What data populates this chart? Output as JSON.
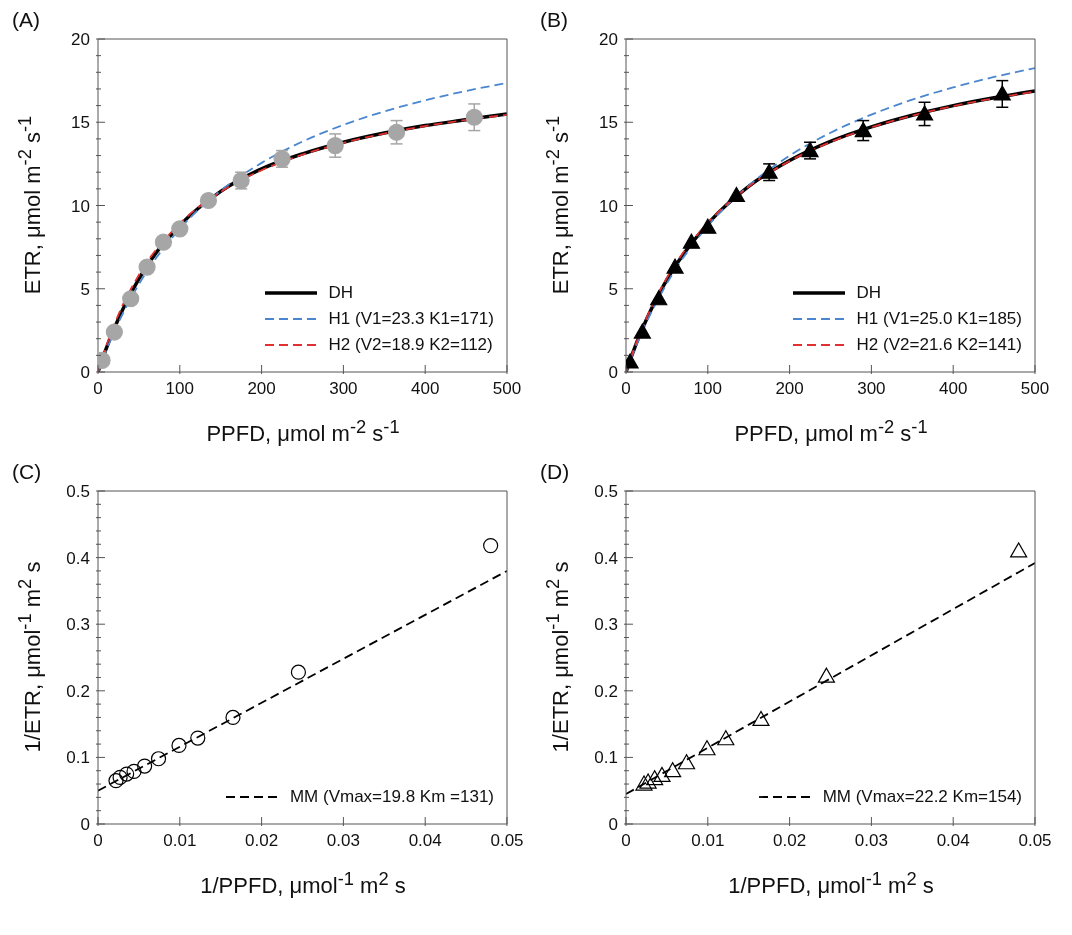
{
  "chart_data": [
    {
      "type": "line",
      "annotations": [
        "(A)"
      ],
      "xlabel": "PPFD, μmol m$^{-2}$ s$^{-1}$",
      "ylabel": "ETR, μmol m$^{-2}$ s$^{-1}$",
      "xlim": [
        0,
        500
      ],
      "xticks": [
        0,
        100,
        200,
        300,
        400,
        500
      ],
      "ylim": [
        0,
        20
      ],
      "yticks": [
        0,
        {
          "value": 1,
          "label": null
        },
        {
          "value": 2,
          "label": null
        },
        {
          "value": 3,
          "label": null
        },
        {
          "value": 4,
          "label": null
        },
        5,
        {
          "value": 6,
          "label": null
        },
        {
          "value": 7,
          "label": null
        },
        {
          "value": 8,
          "label": null
        },
        {
          "value": 9,
          "label": null
        },
        10,
        {
          "value": 11,
          "label": null
        },
        {
          "value": 12,
          "label": null
        },
        {
          "value": 13,
          "label": null
        },
        {
          "value": 14,
          "label": null
        },
        15,
        {
          "value": 16,
          "label": null
        },
        {
          "value": 17,
          "label": null
        },
        {
          "value": 18,
          "label": null
        },
        {
          "value": 19,
          "label": null
        },
        20
      ],
      "legend": "bottom right",
      "series": [
        {
          "name": "DH",
          "color": "#000000",
          "line_style": "solid",
          "marker": "none",
          "x": [
            0,
            10,
            25,
            50,
            100,
            150,
            200,
            250,
            300,
            350,
            400,
            450,
            500
          ],
          "values": [
            0,
            1.4,
            3.2,
            5.6,
            8.8,
            10.85,
            12.2,
            13.1,
            13.8,
            14.35,
            14.8,
            15.15,
            15.5
          ]
        },
        {
          "name": "H1 (V1=23.3 K1=171)",
          "color": "#4a86d0",
          "line_style": "dashed",
          "marker": "none",
          "x": [
            0,
            10,
            25,
            50,
            100,
            150,
            200,
            250,
            300,
            350,
            400,
            450,
            500
          ],
          "values": [
            0,
            1.29,
            2.97,
            5.27,
            8.6,
            10.89,
            12.56,
            13.84,
            14.84,
            15.65,
            16.32,
            16.88,
            17.36
          ]
        },
        {
          "name": "H2 (V2=18.9 K2=112)",
          "color": "#e03030",
          "line_style": "dashed",
          "marker": "none",
          "x": [
            0,
            10,
            25,
            50,
            100,
            150,
            200,
            250,
            300,
            350,
            400,
            450,
            500
          ],
          "values": [
            0,
            1.55,
            3.45,
            5.83,
            8.92,
            10.82,
            12.12,
            13.05,
            13.76,
            14.32,
            14.77,
            15.14,
            15.44
          ]
        },
        {
          "type": "scatter",
          "color": "#a6a6a6",
          "marker": "circle",
          "x": [
            5,
            20,
            40,
            60,
            80,
            100,
            135,
            175,
            225,
            290,
            365,
            460
          ],
          "values": [
            0.7,
            2.4,
            4.4,
            6.3,
            7.8,
            8.6,
            10.3,
            11.5,
            12.8,
            13.6,
            14.4,
            15.3
          ],
          "errors": [
            null,
            null,
            null,
            null,
            null,
            null,
            null,
            0.5,
            0.5,
            0.7,
            0.7,
            0.8
          ]
        }
      ]
    },
    {
      "type": "line",
      "annotations": [
        "(B)"
      ],
      "xlabel": "PPFD, μmol m$^{-2}$ s$^{-1}$",
      "ylabel": "ETR, μmol m$^{-2}$ s$^{-1}$",
      "xlim": [
        0,
        500
      ],
      "xticks": [
        0,
        100,
        200,
        300,
        400,
        500
      ],
      "ylim": [
        0,
        20
      ],
      "yticks": [
        0,
        {
          "value": 1,
          "label": null
        },
        {
          "value": 2,
          "label": null
        },
        {
          "value": 3,
          "label": null
        },
        {
          "value": 4,
          "label": null
        },
        5,
        {
          "value": 6,
          "label": null
        },
        {
          "value": 7,
          "label": null
        },
        {
          "value": 8,
          "label": null
        },
        {
          "value": 9,
          "label": null
        },
        10,
        {
          "value": 11,
          "label": null
        },
        {
          "value": 12,
          "label": null
        },
        {
          "value": 13,
          "label": null
        },
        {
          "value": 14,
          "label": null
        },
        15,
        {
          "value": 16,
          "label": null
        },
        {
          "value": 17,
          "label": null
        },
        {
          "value": 18,
          "label": null
        },
        {
          "value": 19,
          "label": null
        },
        20
      ],
      "legend": "bottom right",
      "series": [
        {
          "name": "DH",
          "color": "#000000",
          "line_style": "solid",
          "marker": "none",
          "x": [
            0,
            10,
            25,
            50,
            100,
            150,
            200,
            250,
            300,
            350,
            400,
            450,
            500
          ],
          "values": [
            0,
            1.38,
            3.15,
            5.55,
            8.9,
            11.15,
            12.7,
            13.85,
            14.72,
            15.42,
            16.0,
            16.47,
            16.88
          ]
        },
        {
          "name": "H1 (V1=25.0 K1=185)",
          "color": "#4a86d0",
          "line_style": "dashed",
          "marker": "none",
          "x": [
            0,
            10,
            25,
            50,
            100,
            150,
            200,
            250,
            300,
            350,
            400,
            450,
            500
          ],
          "values": [
            0,
            1.28,
            2.98,
            5.32,
            8.77,
            11.19,
            12.99,
            14.37,
            15.46,
            16.36,
            17.09,
            17.72,
            18.25
          ]
        },
        {
          "name": "H2 (V2=21.6 K2=141)",
          "color": "#e03030",
          "line_style": "dashed",
          "marker": "none",
          "x": [
            0,
            10,
            25,
            50,
            100,
            150,
            200,
            250,
            300,
            350,
            400,
            450,
            500
          ],
          "values": [
            0,
            1.43,
            3.25,
            5.65,
            8.96,
            11.13,
            12.67,
            13.81,
            14.69,
            15.4,
            15.97,
            16.44,
            16.84
          ]
        },
        {
          "type": "scatter",
          "color": "#000000",
          "marker": "triangle",
          "x": [
            5,
            20,
            40,
            60,
            80,
            100,
            135,
            175,
            225,
            290,
            365,
            460
          ],
          "values": [
            0.6,
            2.4,
            4.4,
            6.3,
            7.8,
            8.7,
            10.6,
            12.0,
            13.3,
            14.5,
            15.5,
            16.7
          ],
          "errors": [
            null,
            null,
            null,
            null,
            null,
            null,
            null,
            0.5,
            0.5,
            0.6,
            0.7,
            0.8
          ]
        }
      ]
    },
    {
      "type": "scatter",
      "annotations": [
        "(C)"
      ],
      "xlabel": "1/PPFD, μmol$^{-1}$ m$^{2}$ s",
      "ylabel": "1/ETR, μmol$^{-1}$ m$^{2}$ s",
      "xlim": [
        0,
        0.05
      ],
      "xticks": [
        0,
        0.01,
        0.02,
        0.03,
        0.04,
        0.05
      ],
      "ylim": [
        0,
        0.5
      ],
      "yticks": [
        0,
        {
          "value": 0.02,
          "label": null
        },
        {
          "value": 0.04,
          "label": null
        },
        {
          "value": 0.06,
          "label": null
        },
        {
          "value": 0.08,
          "label": null
        },
        0.1,
        {
          "value": 0.12,
          "label": null
        },
        {
          "value": 0.14,
          "label": null
        },
        {
          "value": 0.16,
          "label": null
        },
        {
          "value": 0.18,
          "label": null
        },
        0.2,
        {
          "value": 0.22,
          "label": null
        },
        {
          "value": 0.24,
          "label": null
        },
        {
          "value": 0.26,
          "label": null
        },
        {
          "value": 0.28,
          "label": null
        },
        0.3,
        {
          "value": 0.32,
          "label": null
        },
        {
          "value": 0.34,
          "label": null
        },
        {
          "value": 0.36,
          "label": null
        },
        {
          "value": 0.38,
          "label": null
        },
        0.4,
        {
          "value": 0.42,
          "label": null
        },
        {
          "value": 0.44,
          "label": null
        },
        {
          "value": 0.46,
          "label": null
        },
        {
          "value": 0.48,
          "label": null
        },
        0.5
      ],
      "legend": "bottom right",
      "series": [
        {
          "color": "#000000",
          "marker": "circle",
          "x": [
            0.0022,
            0.0027,
            0.0035,
            0.0044,
            0.0057,
            0.0074,
            0.0099,
            0.0122,
            0.0165,
            0.0245,
            0.048
          ],
          "values": [
            0.065,
            0.07,
            0.075,
            0.079,
            0.087,
            0.098,
            0.118,
            0.129,
            0.16,
            0.228,
            0.418
          ]
        },
        {
          "name": "MM (Vmax=19.8 Km =131)",
          "type": "line",
          "color": "#000000",
          "line_style": "dashed",
          "marker": "none",
          "x": [
            0,
            0.05
          ],
          "values": [
            0.05,
            0.38
          ]
        }
      ]
    },
    {
      "type": "scatter",
      "annotations": [
        "(D)"
      ],
      "xlabel": "1/PPFD, μmol$^{-1}$ m$^{2}$ s",
      "ylabel": "1/ETR, μmol$^{-1}$ m$^{2}$ s",
      "xlim": [
        0,
        0.05
      ],
      "xticks": [
        0,
        0.01,
        0.02,
        0.03,
        0.04,
        0.05
      ],
      "ylim": [
        0,
        0.5
      ],
      "yticks": [
        0,
        {
          "value": 0.02,
          "label": null
        },
        {
          "value": 0.04,
          "label": null
        },
        {
          "value": 0.06,
          "label": null
        },
        {
          "value": 0.08,
          "label": null
        },
        0.1,
        {
          "value": 0.12,
          "label": null
        },
        {
          "value": 0.14,
          "label": null
        },
        {
          "value": 0.16,
          "label": null
        },
        {
          "value": 0.18,
          "label": null
        },
        0.2,
        {
          "value": 0.22,
          "label": null
        },
        {
          "value": 0.24,
          "label": null
        },
        {
          "value": 0.26,
          "label": null
        },
        {
          "value": 0.28,
          "label": null
        },
        0.3,
        {
          "value": 0.32,
          "label": null
        },
        {
          "value": 0.34,
          "label": null
        },
        {
          "value": 0.36,
          "label": null
        },
        {
          "value": 0.38,
          "label": null
        },
        0.4,
        {
          "value": 0.42,
          "label": null
        },
        {
          "value": 0.44,
          "label": null
        },
        {
          "value": 0.46,
          "label": null
        },
        {
          "value": 0.48,
          "label": null
        },
        0.5
      ],
      "legend": "bottom right",
      "series": [
        {
          "color": "#000000",
          "marker": "triangle",
          "x": [
            0.0022,
            0.0027,
            0.0035,
            0.0044,
            0.0057,
            0.0074,
            0.0099,
            0.0122,
            0.0165,
            0.0245,
            0.048
          ],
          "values": [
            0.06,
            0.063,
            0.068,
            0.073,
            0.08,
            0.092,
            0.113,
            0.128,
            0.157,
            0.222,
            0.41
          ]
        },
        {
          "name": "MM (Vmax=22.2 Km=154)",
          "type": "line",
          "color": "#000000",
          "line_style": "dashed",
          "marker": "none",
          "x": [
            0,
            0.05
          ],
          "values": [
            0.045,
            0.392
          ]
        }
      ]
    }
  ]
}
